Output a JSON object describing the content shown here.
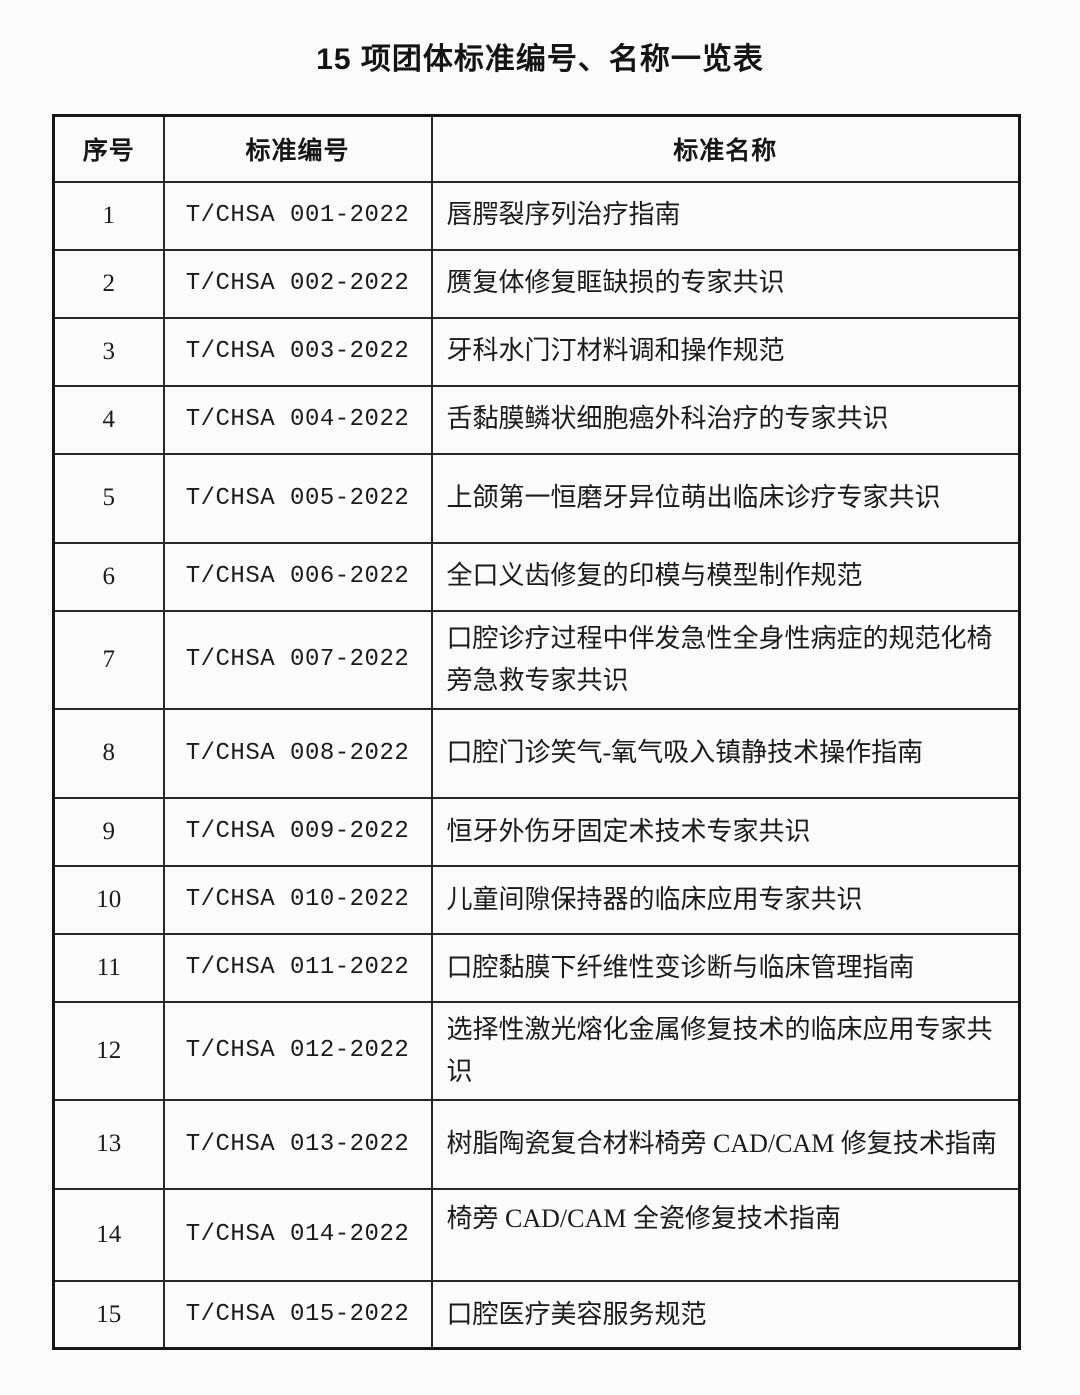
{
  "page": {
    "title": "15 项团体标准编号、名称一览表"
  },
  "table": {
    "columns": [
      {
        "key": "index",
        "label": "序号"
      },
      {
        "key": "code",
        "label": "标准编号"
      },
      {
        "key": "name",
        "label": "标准名称"
      }
    ],
    "rows": [
      {
        "index": "1",
        "code": "T/CHSA 001-2022",
        "name": "唇腭裂序列治疗指南",
        "lines": 1
      },
      {
        "index": "2",
        "code": "T/CHSA 002-2022",
        "name": "赝复体修复眶缺损的专家共识",
        "lines": 1
      },
      {
        "index": "3",
        "code": "T/CHSA 003-2022",
        "name": "牙科水门汀材料调和操作规范",
        "lines": 1
      },
      {
        "index": "4",
        "code": "T/CHSA 004-2022",
        "name": "舌黏膜鳞状细胞癌外科治疗的专家共识",
        "lines": 1
      },
      {
        "index": "5",
        "code": "T/CHSA 005-2022",
        "name": "上颌第一恒磨牙异位萌出临床诊疗专家共识",
        "lines": 2
      },
      {
        "index": "6",
        "code": "T/CHSA 006-2022",
        "name": "全口义齿修复的印模与模型制作规范",
        "lines": 1
      },
      {
        "index": "7",
        "code": "T/CHSA 007-2022",
        "name": "口腔诊疗过程中伴发急性全身性病症的规范化椅旁急救专家共识",
        "lines": 2
      },
      {
        "index": "8",
        "code": "T/CHSA 008-2022",
        "name": "口腔门诊笑气-氧气吸入镇静技术操作指南",
        "lines": 2
      },
      {
        "index": "9",
        "code": "T/CHSA 009-2022",
        "name": "恒牙外伤牙固定术技术专家共识",
        "lines": 1
      },
      {
        "index": "10",
        "code": "T/CHSA 010-2022",
        "name": "儿童间隙保持器的临床应用专家共识",
        "lines": 1
      },
      {
        "index": "11",
        "code": "T/CHSA 011-2022",
        "name": "口腔黏膜下纤维性变诊断与临床管理指南",
        "lines": 1
      },
      {
        "index": "12",
        "code": "T/CHSA 012-2022",
        "name": "选择性激光熔化金属修复技术的临床应用专家共识",
        "lines": 2
      },
      {
        "index": "13",
        "code": "T/CHSA 013-2022",
        "name": "树脂陶瓷复合材料椅旁 CAD/CAM 修复技术指南",
        "lines": 2
      },
      {
        "index": "14",
        "code": "T/CHSA 014-2022",
        "name": "椅旁 CAD/CAM 全瓷修复技术指南",
        "lines": 1,
        "tall_single": true,
        "name_valign": "top"
      },
      {
        "index": "15",
        "code": "T/CHSA 015-2022",
        "name": "口腔医疗美容服务规范",
        "lines": 1
      }
    ]
  },
  "colors": {
    "background": "#fbfbfb",
    "border_outer": "#161616",
    "border_inner": "#282828",
    "text": "#1b1b1b"
  }
}
